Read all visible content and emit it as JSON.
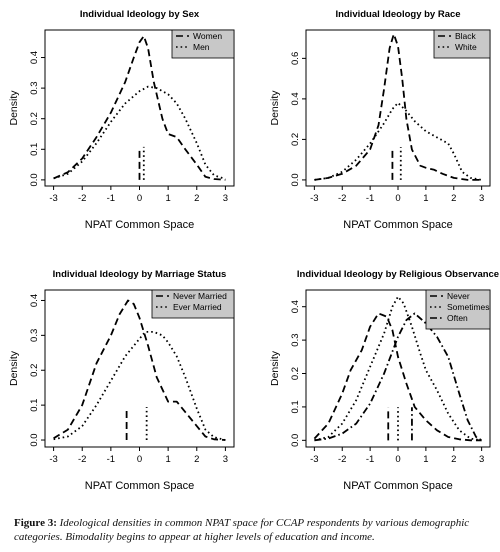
{
  "caption": {
    "label": "Figure 3:",
    "text": "Ideological densities in common NPAT space for CCAP respondents by various demographic categories. Bimodality begins to appear at higher levels of education and income."
  },
  "chart_data": [
    {
      "type": "line",
      "title": "Individual Ideology by Sex",
      "xlabel": "NPAT Common Space",
      "ylabel": "Density",
      "xlim": [
        -3.3,
        3.3
      ],
      "ylim": [
        -0.02,
        0.49
      ],
      "xticks": [
        -3,
        -2,
        -1,
        0,
        1,
        2,
        3
      ],
      "yticks": [
        0.0,
        0.1,
        0.2,
        0.3,
        0.4
      ],
      "legend_position": "top-right",
      "legend_bg": "#c8c8c8",
      "series": [
        {
          "name": "Women",
          "style": "dashed",
          "x": [
            -3.0,
            -2.5,
            -2.0,
            -1.5,
            -1.0,
            -0.5,
            -0.2,
            0.0,
            0.15,
            0.3,
            0.5,
            0.8,
            1.0,
            1.3,
            1.6,
            2.0,
            2.3,
            2.6,
            3.0
          ],
          "y": [
            0.005,
            0.025,
            0.07,
            0.14,
            0.22,
            0.32,
            0.4,
            0.45,
            0.47,
            0.43,
            0.32,
            0.2,
            0.15,
            0.14,
            0.1,
            0.05,
            0.01,
            0.003,
            0.0
          ],
          "median": 0.0
        },
        {
          "name": "Men",
          "style": "dotted",
          "x": [
            -3.0,
            -2.5,
            -2.0,
            -1.5,
            -1.0,
            -0.5,
            0.0,
            0.3,
            0.6,
            1.0,
            1.3,
            1.6,
            2.0,
            2.3,
            2.6,
            3.0
          ],
          "y": [
            0.005,
            0.02,
            0.06,
            0.12,
            0.19,
            0.25,
            0.29,
            0.305,
            0.3,
            0.28,
            0.25,
            0.2,
            0.12,
            0.05,
            0.015,
            0.003
          ],
          "median": 0.15
        }
      ]
    },
    {
      "type": "line",
      "title": "Individual Ideology by Race",
      "xlabel": "NPAT Common Space",
      "ylabel": "Density",
      "xlim": [
        -3.3,
        3.3
      ],
      "ylim": [
        -0.03,
        0.74
      ],
      "xticks": [
        -3,
        -2,
        -1,
        0,
        1,
        2,
        3
      ],
      "yticks": [
        0.0,
        0.2,
        0.4,
        0.6
      ],
      "legend_position": "top-right",
      "legend_bg": "#c8c8c8",
      "series": [
        {
          "name": "Black",
          "style": "dashed",
          "x": [
            -3.0,
            -2.5,
            -2.0,
            -1.5,
            -1.0,
            -0.7,
            -0.5,
            -0.3,
            -0.15,
            0.0,
            0.15,
            0.3,
            0.5,
            0.8,
            1.0,
            1.3,
            1.6,
            2.0,
            2.5,
            3.0
          ],
          "y": [
            0.0,
            0.01,
            0.03,
            0.07,
            0.15,
            0.27,
            0.45,
            0.65,
            0.72,
            0.66,
            0.5,
            0.3,
            0.15,
            0.07,
            0.06,
            0.05,
            0.03,
            0.01,
            0.0,
            0.0
          ],
          "median": -0.2
        },
        {
          "name": "White",
          "style": "dotted",
          "x": [
            -3.0,
            -2.5,
            -2.0,
            -1.5,
            -1.0,
            -0.5,
            -0.2,
            0.0,
            0.3,
            0.6,
            1.0,
            1.4,
            1.8,
            2.0,
            2.3,
            2.6,
            3.0
          ],
          "y": [
            0.0,
            0.01,
            0.04,
            0.1,
            0.18,
            0.28,
            0.35,
            0.38,
            0.34,
            0.29,
            0.24,
            0.21,
            0.18,
            0.13,
            0.04,
            0.01,
            0.0
          ],
          "median": 0.1
        }
      ]
    },
    {
      "type": "line",
      "title": "Individual Ideology by Marriage Status",
      "xlabel": "NPAT Common Space",
      "ylabel": "Density",
      "xlim": [
        -3.3,
        3.3
      ],
      "ylim": [
        -0.02,
        0.43
      ],
      "xticks": [
        -3,
        -2,
        -1,
        0,
        1,
        2,
        3
      ],
      "yticks": [
        0.0,
        0.1,
        0.2,
        0.3,
        0.4
      ],
      "legend_position": "top-right",
      "legend_bg": "#c8c8c8",
      "series": [
        {
          "name": "Never Married",
          "style": "dashed",
          "x": [
            -3.0,
            -2.5,
            -2.0,
            -1.5,
            -1.0,
            -0.7,
            -0.4,
            -0.2,
            0.0,
            0.3,
            0.6,
            1.0,
            1.3,
            1.6,
            2.0,
            2.3,
            2.6,
            3.0
          ],
          "y": [
            0.005,
            0.03,
            0.1,
            0.22,
            0.3,
            0.36,
            0.4,
            0.39,
            0.35,
            0.27,
            0.18,
            0.11,
            0.11,
            0.08,
            0.04,
            0.01,
            0.002,
            0.0
          ],
          "median": -0.45
        },
        {
          "name": "Ever Married",
          "style": "dotted",
          "x": [
            -3.0,
            -2.5,
            -2.0,
            -1.5,
            -1.0,
            -0.5,
            0.0,
            0.2,
            0.5,
            0.8,
            1.0,
            1.3,
            1.6,
            2.0,
            2.3,
            2.6,
            3.0
          ],
          "y": [
            0.002,
            0.01,
            0.04,
            0.1,
            0.17,
            0.24,
            0.29,
            0.31,
            0.31,
            0.3,
            0.28,
            0.24,
            0.18,
            0.09,
            0.03,
            0.008,
            0.0
          ],
          "median": 0.25
        }
      ]
    },
    {
      "type": "line",
      "title": "Individual Ideology by Religious Observance",
      "xlabel": "NPAT Common Space",
      "ylabel": "Density",
      "xlim": [
        -3.3,
        3.3
      ],
      "ylim": [
        -0.02,
        0.45
      ],
      "xticks": [
        -3,
        -2,
        -1,
        0,
        1,
        2,
        3
      ],
      "yticks": [
        0.0,
        0.1,
        0.2,
        0.3,
        0.4
      ],
      "legend_position": "top-right",
      "legend_bg": "#c8c8c8",
      "series": [
        {
          "name": "Never",
          "style": "dashed",
          "x": [
            -3.0,
            -2.5,
            -2.0,
            -1.7,
            -1.3,
            -1.0,
            -0.7,
            -0.4,
            -0.2,
            0.0,
            0.3,
            0.6,
            1.0,
            1.4,
            1.8,
            2.2,
            2.6,
            3.0
          ],
          "y": [
            0.005,
            0.05,
            0.14,
            0.21,
            0.27,
            0.34,
            0.38,
            0.37,
            0.33,
            0.25,
            0.17,
            0.1,
            0.06,
            0.03,
            0.01,
            0.003,
            0.0,
            0.0
          ],
          "median": -0.35
        },
        {
          "name": "Sometimes",
          "style": "dotted",
          "x": [
            -3.0,
            -2.5,
            -2.0,
            -1.5,
            -1.0,
            -0.5,
            -0.2,
            0.0,
            0.2,
            0.5,
            0.8,
            1.0,
            1.4,
            1.8,
            2.2,
            2.6,
            3.0
          ],
          "y": [
            0.0,
            0.01,
            0.05,
            0.12,
            0.22,
            0.32,
            0.4,
            0.43,
            0.41,
            0.34,
            0.26,
            0.21,
            0.15,
            0.08,
            0.03,
            0.005,
            0.0
          ],
          "median": 0.0
        },
        {
          "name": "Often",
          "style": "dashdot",
          "x": [
            -3.0,
            -2.5,
            -2.0,
            -1.5,
            -1.0,
            -0.5,
            0.0,
            0.3,
            0.6,
            1.0,
            1.4,
            1.8,
            2.2,
            2.5,
            2.8,
            3.0
          ],
          "y": [
            0.0,
            0.005,
            0.02,
            0.05,
            0.11,
            0.2,
            0.31,
            0.36,
            0.38,
            0.35,
            0.31,
            0.25,
            0.14,
            0.06,
            0.01,
            0.0
          ],
          "median": 0.5
        }
      ]
    }
  ]
}
